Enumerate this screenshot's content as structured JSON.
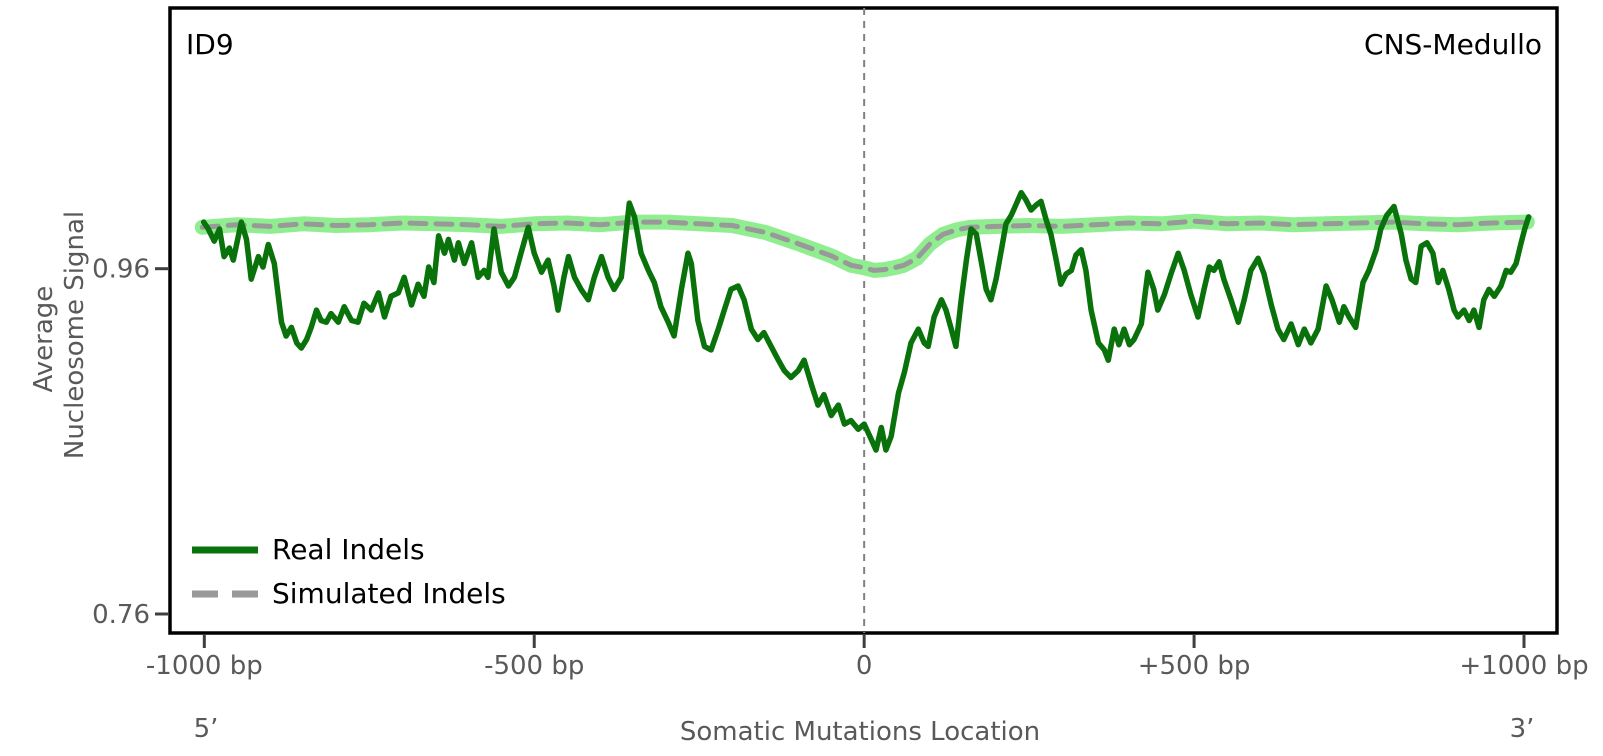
{
  "panel": {
    "top_left_label": "ID9",
    "top_right_label": "CNS-Medullo"
  },
  "chart_data": {
    "type": "line",
    "title": "",
    "xlabel": "Somatic Mutations Location",
    "ylabel_lines": [
      "Average",
      "Nucleosome Signal"
    ],
    "five_prime_label": "5’",
    "three_prime_label": "3’",
    "xlim": [
      -1052,
      1050
    ],
    "ylim": [
      0.749,
      1.111
    ],
    "grid": false,
    "center_line_x": 0,
    "x_ticks": [
      {
        "value": -1000,
        "label": "-1000 bp"
      },
      {
        "value": -500,
        "label": "-500 bp"
      },
      {
        "value": 0,
        "label": "0"
      },
      {
        "value": 500,
        "label": "+500 bp"
      },
      {
        "value": 1000,
        "label": "+1000 bp"
      }
    ],
    "y_ticks": [
      {
        "value": 0.96,
        "label": "0.96"
      },
      {
        "value": 0.76,
        "label": "0.76"
      }
    ],
    "legend": {
      "position": "lower left",
      "entries": [
        {
          "label": "Real Indels",
          "color": "#0a720a",
          "style": "solid"
        },
        {
          "label": "Simulated Indels",
          "color": "#999999",
          "style": "dashed"
        }
      ]
    },
    "series": [
      {
        "name": "Real Indels",
        "color": "#0a720a",
        "style": "solid",
        "width": 5.5,
        "points": [
          [
            -1001,
            0.987
          ],
          [
            -994,
            0.983
          ],
          [
            -985,
            0.976
          ],
          [
            -977,
            0.983
          ],
          [
            -970,
            0.967
          ],
          [
            -962,
            0.972
          ],
          [
            -956,
            0.965
          ],
          [
            -944,
            0.987
          ],
          [
            -936,
            0.977
          ],
          [
            -929,
            0.954
          ],
          [
            -918,
            0.967
          ],
          [
            -911,
            0.961
          ],
          [
            -903,
            0.974
          ],
          [
            -894,
            0.963
          ],
          [
            -883,
            0.929
          ],
          [
            -876,
            0.921
          ],
          [
            -868,
            0.926
          ],
          [
            -860,
            0.917
          ],
          [
            -853,
            0.914
          ],
          [
            -845,
            0.919
          ],
          [
            -838,
            0.926
          ],
          [
            -830,
            0.936
          ],
          [
            -823,
            0.93
          ],
          [
            -815,
            0.929
          ],
          [
            -808,
            0.934
          ],
          [
            -797,
            0.929
          ],
          [
            -788,
            0.938
          ],
          [
            -777,
            0.93
          ],
          [
            -767,
            0.929
          ],
          [
            -758,
            0.94
          ],
          [
            -747,
            0.936
          ],
          [
            -736,
            0.946
          ],
          [
            -727,
            0.932
          ],
          [
            -717,
            0.944
          ],
          [
            -706,
            0.946
          ],
          [
            -697,
            0.955
          ],
          [
            -686,
            0.939
          ],
          [
            -676,
            0.951
          ],
          [
            -667,
            0.944
          ],
          [
            -660,
            0.961
          ],
          [
            -652,
            0.952
          ],
          [
            -645,
            0.979
          ],
          [
            -636,
            0.969
          ],
          [
            -630,
            0.977
          ],
          [
            -621,
            0.965
          ],
          [
            -615,
            0.975
          ],
          [
            -606,
            0.963
          ],
          [
            -595,
            0.975
          ],
          [
            -585,
            0.955
          ],
          [
            -576,
            0.959
          ],
          [
            -570,
            0.955
          ],
          [
            -561,
            0.983
          ],
          [
            -550,
            0.958
          ],
          [
            -539,
            0.95
          ],
          [
            -530,
            0.955
          ],
          [
            -520,
            0.969
          ],
          [
            -509,
            0.984
          ],
          [
            -500,
            0.969
          ],
          [
            -489,
            0.958
          ],
          [
            -479,
            0.965
          ],
          [
            -470,
            0.95
          ],
          [
            -464,
            0.936
          ],
          [
            -455,
            0.955
          ],
          [
            -448,
            0.967
          ],
          [
            -439,
            0.955
          ],
          [
            -429,
            0.948
          ],
          [
            -418,
            0.942
          ],
          [
            -409,
            0.955
          ],
          [
            -398,
            0.967
          ],
          [
            -388,
            0.955
          ],
          [
            -379,
            0.948
          ],
          [
            -368,
            0.955
          ],
          [
            -356,
            0.998
          ],
          [
            -348,
            0.99
          ],
          [
            -338,
            0.969
          ],
          [
            -327,
            0.959
          ],
          [
            -318,
            0.952
          ],
          [
            -308,
            0.938
          ],
          [
            -297,
            0.929
          ],
          [
            -288,
            0.921
          ],
          [
            -277,
            0.948
          ],
          [
            -267,
            0.969
          ],
          [
            -262,
            0.963
          ],
          [
            -252,
            0.93
          ],
          [
            -242,
            0.915
          ],
          [
            -232,
            0.913
          ],
          [
            -221,
            0.925
          ],
          [
            -212,
            0.936
          ],
          [
            -202,
            0.948
          ],
          [
            -191,
            0.95
          ],
          [
            -182,
            0.942
          ],
          [
            -171,
            0.925
          ],
          [
            -161,
            0.919
          ],
          [
            -152,
            0.923
          ],
          [
            -141,
            0.915
          ],
          [
            -130,
            0.907
          ],
          [
            -121,
            0.901
          ],
          [
            -111,
            0.897
          ],
          [
            -100,
            0.901
          ],
          [
            -91,
            0.907
          ],
          [
            -80,
            0.893
          ],
          [
            -70,
            0.881
          ],
          [
            -61,
            0.887
          ],
          [
            -50,
            0.875
          ],
          [
            -39,
            0.881
          ],
          [
            -30,
            0.87
          ],
          [
            -20,
            0.872
          ],
          [
            -9,
            0.867
          ],
          [
            0,
            0.87
          ],
          [
            11,
            0.861
          ],
          [
            18,
            0.855
          ],
          [
            26,
            0.868
          ],
          [
            33,
            0.855
          ],
          [
            41,
            0.863
          ],
          [
            52,
            0.888
          ],
          [
            61,
            0.9
          ],
          [
            71,
            0.917
          ],
          [
            82,
            0.925
          ],
          [
            91,
            0.917
          ],
          [
            97,
            0.915
          ],
          [
            106,
            0.932
          ],
          [
            117,
            0.942
          ],
          [
            124,
            0.936
          ],
          [
            132,
            0.925
          ],
          [
            139,
            0.915
          ],
          [
            147,
            0.942
          ],
          [
            155,
            0.965
          ],
          [
            162,
            0.983
          ],
          [
            170,
            0.98
          ],
          [
            177,
            0.965
          ],
          [
            185,
            0.948
          ],
          [
            192,
            0.942
          ],
          [
            200,
            0.954
          ],
          [
            208,
            0.971
          ],
          [
            215,
            0.986
          ],
          [
            223,
            0.991
          ],
          [
            230,
            0.997
          ],
          [
            238,
            1.004
          ],
          [
            245,
            1.0
          ],
          [
            253,
            0.994
          ],
          [
            261,
            0.997
          ],
          [
            268,
            0.999
          ],
          [
            276,
            0.988
          ],
          [
            283,
            0.98
          ],
          [
            291,
            0.965
          ],
          [
            298,
            0.951
          ],
          [
            306,
            0.957
          ],
          [
            314,
            0.959
          ],
          [
            321,
            0.968
          ],
          [
            329,
            0.971
          ],
          [
            336,
            0.959
          ],
          [
            344,
            0.936
          ],
          [
            355,
            0.917
          ],
          [
            364,
            0.913
          ],
          [
            370,
            0.907
          ],
          [
            379,
            0.925
          ],
          [
            386,
            0.916
          ],
          [
            394,
            0.925
          ],
          [
            402,
            0.916
          ],
          [
            409,
            0.919
          ],
          [
            420,
            0.928
          ],
          [
            430,
            0.958
          ],
          [
            439,
            0.948
          ],
          [
            445,
            0.936
          ],
          [
            455,
            0.945
          ],
          [
            465,
            0.957
          ],
          [
            476,
            0.969
          ],
          [
            485,
            0.959
          ],
          [
            495,
            0.945
          ],
          [
            506,
            0.932
          ],
          [
            515,
            0.948
          ],
          [
            523,
            0.961
          ],
          [
            530,
            0.959
          ],
          [
            538,
            0.964
          ],
          [
            545,
            0.954
          ],
          [
            556,
            0.942
          ],
          [
            567,
            0.929
          ],
          [
            576,
            0.942
          ],
          [
            586,
            0.959
          ],
          [
            597,
            0.966
          ],
          [
            606,
            0.957
          ],
          [
            617,
            0.939
          ],
          [
            627,
            0.925
          ],
          [
            636,
            0.919
          ],
          [
            647,
            0.928
          ],
          [
            658,
            0.916
          ],
          [
            667,
            0.925
          ],
          [
            677,
            0.917
          ],
          [
            688,
            0.925
          ],
          [
            700,
            0.95
          ],
          [
            709,
            0.942
          ],
          [
            720,
            0.929
          ],
          [
            727,
            0.938
          ],
          [
            735,
            0.932
          ],
          [
            745,
            0.926
          ],
          [
            756,
            0.952
          ],
          [
            765,
            0.959
          ],
          [
            776,
            0.971
          ],
          [
            783,
            0.983
          ],
          [
            792,
            0.991
          ],
          [
            803,
            0.996
          ],
          [
            814,
            0.98
          ],
          [
            821,
            0.965
          ],
          [
            829,
            0.954
          ],
          [
            836,
            0.952
          ],
          [
            844,
            0.973
          ],
          [
            853,
            0.975
          ],
          [
            862,
            0.969
          ],
          [
            870,
            0.952
          ],
          [
            877,
            0.959
          ],
          [
            886,
            0.948
          ],
          [
            894,
            0.936
          ],
          [
            900,
            0.932
          ],
          [
            909,
            0.936
          ],
          [
            917,
            0.93
          ],
          [
            924,
            0.936
          ],
          [
            932,
            0.926
          ],
          [
            939,
            0.942
          ],
          [
            947,
            0.948
          ],
          [
            955,
            0.944
          ],
          [
            965,
            0.95
          ],
          [
            973,
            0.959
          ],
          [
            980,
            0.958
          ],
          [
            988,
            0.963
          ],
          [
            995,
            0.974
          ],
          [
            1001,
            0.983
          ],
          [
            1007,
            0.99
          ]
        ]
      },
      {
        "name": "Simulated Indels",
        "color": "#999999",
        "style": "dashed",
        "width": 5,
        "band_color": "#90ee90",
        "band_width": 15,
        "points": [
          [
            -1003,
            0.984
          ],
          [
            -950,
            0.9855
          ],
          [
            -900,
            0.9845
          ],
          [
            -850,
            0.986
          ],
          [
            -800,
            0.985
          ],
          [
            -750,
            0.9855
          ],
          [
            -700,
            0.9865
          ],
          [
            -650,
            0.986
          ],
          [
            -600,
            0.9855
          ],
          [
            -550,
            0.9845
          ],
          [
            -500,
            0.986
          ],
          [
            -450,
            0.9865
          ],
          [
            -400,
            0.9855
          ],
          [
            -350,
            0.987
          ],
          [
            -300,
            0.987
          ],
          [
            -250,
            0.986
          ],
          [
            -200,
            0.985
          ],
          [
            -150,
            0.981
          ],
          [
            -100,
            0.9745
          ],
          [
            -50,
            0.9675
          ],
          [
            -20,
            0.962
          ],
          [
            0,
            0.9605
          ],
          [
            15,
            0.959
          ],
          [
            30,
            0.9595
          ],
          [
            45,
            0.9605
          ],
          [
            60,
            0.962
          ],
          [
            80,
            0.966
          ],
          [
            100,
            0.9745
          ],
          [
            120,
            0.98
          ],
          [
            140,
            0.9825
          ],
          [
            160,
            0.984
          ],
          [
            200,
            0.9845
          ],
          [
            250,
            0.985
          ],
          [
            300,
            0.9845
          ],
          [
            350,
            0.9855
          ],
          [
            400,
            0.9865
          ],
          [
            450,
            0.986
          ],
          [
            500,
            0.9875
          ],
          [
            550,
            0.986
          ],
          [
            600,
            0.9865
          ],
          [
            650,
            0.9855
          ],
          [
            700,
            0.986
          ],
          [
            750,
            0.9865
          ],
          [
            800,
            0.987
          ],
          [
            850,
            0.986
          ],
          [
            900,
            0.9855
          ],
          [
            950,
            0.9865
          ],
          [
            1005,
            0.987
          ]
        ]
      }
    ]
  }
}
